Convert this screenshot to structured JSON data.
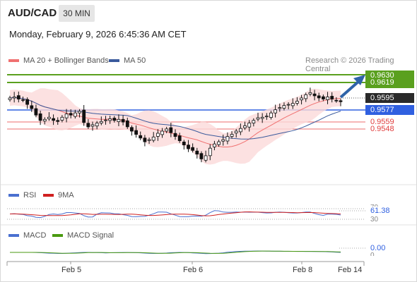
{
  "header": {
    "symbol": "AUD/CAD",
    "timeframe": "30 MIN",
    "datetime": "Monday, February 9, 2026 6:45:36 AM CET"
  },
  "legend": {
    "ma20_label": "MA 20 + Bollinger Bands",
    "ma50_label": "MA 50",
    "credit": "Research © 2026 Trading Central",
    "rsi_label": "RSI",
    "rsi_ma_label": "9MA",
    "macd_label": "MACD",
    "macd_signal_label": "MACD Signal"
  },
  "colors": {
    "ma20": "#f07070",
    "ma50": "#3a5a9c",
    "bollinger_fill": "#fbdada",
    "resistance": "#5aa01e",
    "pivot": "#3060e0",
    "support": "#e03c3c",
    "current": "#2a2a2a",
    "arrow": "#2f63a8",
    "rsi": "#4a70d0",
    "rsi_ma": "#d02020",
    "macd": "#4a70d0",
    "macd_signal": "#4a9a10"
  },
  "levels": {
    "r2": "0.9630",
    "r1": "0.9619",
    "last": "0.9595",
    "pivot": "0.9577",
    "s1": "0.9559",
    "s2": "0.9548"
  },
  "indicators": {
    "rsi_value": "61.38",
    "rsi_upper_tick": "70",
    "rsi_lower_tick": "30",
    "macd_value": "0.00",
    "macd_zero_tick": "0"
  },
  "chart_data": {
    "type": "candlestick",
    "x_labels": [
      "Feb 5",
      "Feb 6",
      "Feb 8",
      "Feb 14"
    ],
    "ylim": [
      0.9445,
      0.966
    ],
    "close": [
      0.9602,
      0.9604,
      0.96,
      0.9598,
      0.959,
      0.9582,
      0.957,
      0.956,
      0.9562,
      0.9566,
      0.956,
      0.9558,
      0.9566,
      0.9572,
      0.957,
      0.9574,
      0.9577,
      0.9556,
      0.9548,
      0.9552,
      0.9555,
      0.9558,
      0.9561,
      0.9563,
      0.956,
      0.9562,
      0.9557,
      0.9548,
      0.954,
      0.9534,
      0.9527,
      0.952,
      0.9524,
      0.9529,
      0.9536,
      0.954,
      0.9544,
      0.9537,
      0.953,
      0.9522,
      0.9514,
      0.9507,
      0.9504,
      0.9497,
      0.9488,
      0.9494,
      0.9508,
      0.9516,
      0.952,
      0.9524,
      0.953,
      0.9534,
      0.954,
      0.9545,
      0.955,
      0.9555,
      0.956,
      0.9565,
      0.9566,
      0.9568,
      0.9574,
      0.958,
      0.9584,
      0.9588,
      0.959,
      0.9592,
      0.9596,
      0.9602,
      0.9608,
      0.9612,
      0.9606,
      0.9602,
      0.96,
      0.9604,
      0.96,
      0.9597,
      0.9595
    ],
    "series": [
      {
        "name": "MA 20 + Bollinger Bands"
      },
      {
        "name": "MA 50"
      }
    ]
  }
}
